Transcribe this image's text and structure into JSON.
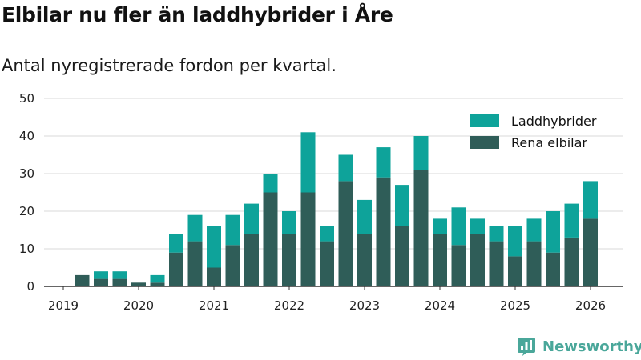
{
  "title": "Elbilar nu fler än laddhybrider i Åre",
  "subtitle": "Antal nyregistrerade fordon per kvartal.",
  "brand": "Newsworthy",
  "colors": {
    "bev": "#2f5d58",
    "phev": "#0ea39a",
    "grid": "#d9d9d9",
    "axis": "#333333",
    "brand": "#4aa79a"
  },
  "chart_data": {
    "type": "bar",
    "stacked": true,
    "title": "Elbilar nu fler än laddhybrider i Åre",
    "subtitle": "Antal nyregistrerade fordon per kvartal.",
    "xlabel": "",
    "ylabel": "",
    "ylim": [
      0,
      50
    ],
    "yticks": [
      0,
      10,
      20,
      30,
      40,
      50
    ],
    "categories": [
      "2019-Q1",
      "2019-Q2",
      "2019-Q3",
      "2019-Q4",
      "2020-Q1",
      "2020-Q2",
      "2020-Q3",
      "2020-Q4",
      "2021-Q1",
      "2021-Q2",
      "2021-Q3",
      "2021-Q4",
      "2022-Q1",
      "2022-Q2",
      "2022-Q3",
      "2022-Q4",
      "2023-Q1",
      "2023-Q2",
      "2023-Q3",
      "2023-Q4",
      "2024-Q1",
      "2024-Q2",
      "2024-Q3",
      "2024-Q4",
      "2025-Q1",
      "2025-Q2",
      "2025-Q3",
      "2025-Q4",
      "2026-Q1"
    ],
    "xtick_labels": [
      "2019",
      "2020",
      "2021",
      "2022",
      "2023",
      "2024",
      "2025",
      "2026"
    ],
    "xtick_index": [
      0,
      4,
      8,
      12,
      16,
      20,
      24,
      28
    ],
    "series": [
      {
        "name": "Rena elbilar",
        "color": "#2f5d58",
        "values": [
          0,
          3,
          2,
          2,
          1,
          1,
          9,
          12,
          5,
          11,
          14,
          25,
          14,
          25,
          12,
          28,
          14,
          29,
          16,
          31,
          14,
          11,
          14,
          12,
          8,
          12,
          9,
          13,
          18
        ]
      },
      {
        "name": "Laddhybrider",
        "color": "#0ea39a",
        "values": [
          0,
          0,
          2,
          2,
          0,
          2,
          5,
          7,
          11,
          8,
          8,
          5,
          6,
          16,
          4,
          7,
          9,
          8,
          11,
          9,
          4,
          10,
          4,
          4,
          8,
          6,
          11,
          9,
          10
        ]
      }
    ],
    "legend": [
      {
        "label": "Laddhybrider",
        "color": "#0ea39a"
      },
      {
        "label": "Rena elbilar",
        "color": "#2f5d58"
      }
    ],
    "legend_position": "top-right",
    "grid": true
  }
}
